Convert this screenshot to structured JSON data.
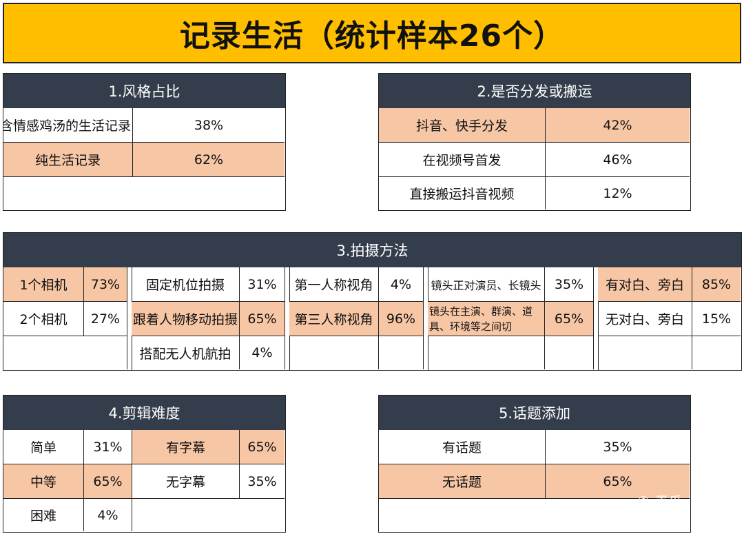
{
  "title": "记录生活（统计样本26个）",
  "colors": {
    "banner": "#ffbf00",
    "header": "#333d4b",
    "highlight": "#f7c6a5"
  },
  "panel1": {
    "title": "1.风格占比",
    "rows": [
      {
        "label": "含情感鸡汤的生活记录",
        "value": "38%"
      },
      {
        "label": "纯生活记录",
        "value": "62%"
      }
    ]
  },
  "panel2": {
    "title": "2.是否分发或搬运",
    "rows": [
      {
        "label": "抖音、快手分发",
        "value": "42%"
      },
      {
        "label": "在视频号首发",
        "value": "46%"
      },
      {
        "label": "直接搬运抖音视频",
        "value": "12%"
      }
    ]
  },
  "panel3": {
    "title": "3.拍摄方法",
    "group1": [
      {
        "label": "1个相机",
        "value": "73%"
      },
      {
        "label": "2个相机",
        "value": "27%"
      }
    ],
    "group2": [
      {
        "label": "固定机位拍摄",
        "value": "31%"
      },
      {
        "label": "跟着人物移动拍摄",
        "value": "65%"
      },
      {
        "label": "搭配无人机航拍",
        "value": "4%"
      }
    ],
    "group3": [
      {
        "label": "第一人称视角",
        "value": "4%"
      },
      {
        "label": "第三人称视角",
        "value": "96%"
      }
    ],
    "group4": [
      {
        "label": "镜头正对演员、长镜头",
        "value": "35%"
      },
      {
        "label": "镜头在主演、群演、道具、环境等之间切",
        "value": "65%"
      }
    ],
    "group5": [
      {
        "label": "有对白、旁白",
        "value": "85%"
      },
      {
        "label": "无对白、旁白",
        "value": "15%"
      }
    ]
  },
  "panel4": {
    "title": "4.剪辑难度",
    "difficulty": [
      {
        "label": "简单",
        "value": "31%"
      },
      {
        "label": "中等",
        "value": "65%"
      },
      {
        "label": "困难",
        "value": "4%"
      }
    ],
    "subtitles": [
      {
        "label": "有字幕",
        "value": "65%"
      },
      {
        "label": "无字幕",
        "value": "35%"
      }
    ]
  },
  "panel5": {
    "title": "5.话题添加",
    "rows": [
      {
        "label": "有话题",
        "value": "35%"
      },
      {
        "label": "无话题",
        "value": "65%"
      }
    ]
  },
  "watermark": "© 青瓜"
}
